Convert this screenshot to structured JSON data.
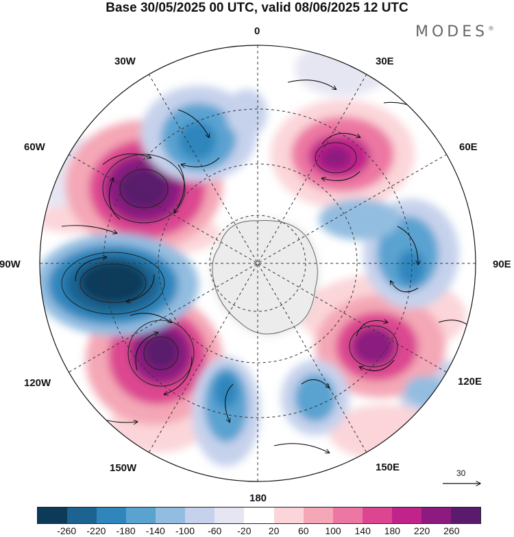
{
  "title": "Base 30/05/2025 00 UTC, valid 08/06/2025 12 UTC",
  "brand": "MODES",
  "brand_mark": "®",
  "map": {
    "projection": "south-polar-stereographic",
    "meridian_labels": {
      "m0": "0",
      "m30e": "30E",
      "m60e": "60E",
      "m90e": "90E",
      "m120e": "120E",
      "m150e": "150E",
      "m180": "180",
      "m150w": "150W",
      "m120w": "120W",
      "m90w": "90W",
      "m60w": "60W",
      "m30w": "30W"
    },
    "vector_reference": "30"
  },
  "colorbar": {
    "colors": [
      "#0e3a5a",
      "#1c6391",
      "#2f86bd",
      "#5aa3d1",
      "#93bde0",
      "#c6d2ec",
      "#e6e6f3",
      "#ffffff",
      "#fbd5d9",
      "#f4a7b6",
      "#ec77a2",
      "#dc4690",
      "#c0238a",
      "#8d1a80",
      "#5a1a6d"
    ],
    "tick_labels": [
      "-260",
      "-220",
      "-180",
      "-140",
      "-100",
      "-60",
      "-20",
      "20",
      "60",
      "100",
      "140",
      "180",
      "220",
      "260"
    ]
  }
}
